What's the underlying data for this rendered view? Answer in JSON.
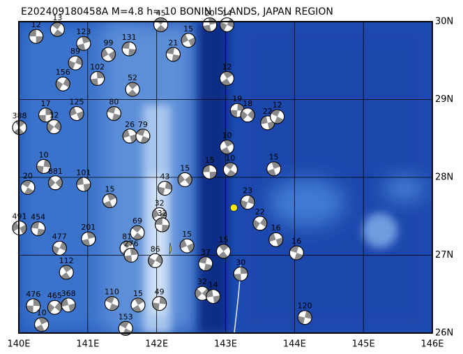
{
  "map": {
    "title": "E202409180458A M=4.8 h= 10 BONIN ISLANDS, JAPAN REGION",
    "lon_range": [
      140,
      146
    ],
    "lat_range": [
      26,
      30
    ],
    "lon_ticks": [
      {
        "value": 140,
        "label": "140E"
      },
      {
        "value": 141,
        "label": "141E"
      },
      {
        "value": 142,
        "label": "142E"
      },
      {
        "value": 143,
        "label": "143E"
      },
      {
        "value": 144,
        "label": "144E"
      },
      {
        "value": 145,
        "label": "145E"
      },
      {
        "value": 146,
        "label": "146E"
      }
    ],
    "lat_ticks": [
      {
        "value": 26,
        "label": "26N"
      },
      {
        "value": 27,
        "label": "27N"
      },
      {
        "value": 28,
        "label": "28N"
      },
      {
        "value": 29,
        "label": "29N"
      },
      {
        "value": 30,
        "label": "30N"
      }
    ],
    "epicenter": {
      "lon": 143.12,
      "lat": 27.61,
      "color": "#ffee00"
    },
    "events": [
      {
        "lon": 140.25,
        "lat": 29.81,
        "label": "12"
      },
      {
        "lon": 140.56,
        "lat": 29.9,
        "label": "13"
      },
      {
        "lon": 140.94,
        "lat": 29.72,
        "label": "123"
      },
      {
        "lon": 140.82,
        "lat": 29.47,
        "label": "89"
      },
      {
        "lon": 141.3,
        "lat": 29.58,
        "label": "99"
      },
      {
        "lon": 141.6,
        "lat": 29.65,
        "label": "131"
      },
      {
        "lon": 142.06,
        "lat": 29.96,
        "label": "45"
      },
      {
        "lon": 142.77,
        "lat": 29.96,
        "label": "20"
      },
      {
        "lon": 143.02,
        "lat": 29.96,
        "label": "14"
      },
      {
        "lon": 142.46,
        "lat": 29.76,
        "label": "15"
      },
      {
        "lon": 142.24,
        "lat": 29.58,
        "label": "21"
      },
      {
        "lon": 141.65,
        "lat": 29.13,
        "label": "52"
      },
      {
        "lon": 141.14,
        "lat": 29.27,
        "label": "102"
      },
      {
        "lon": 140.64,
        "lat": 29.2,
        "label": "156"
      },
      {
        "lon": 140.84,
        "lat": 28.82,
        "label": "125"
      },
      {
        "lon": 141.38,
        "lat": 28.82,
        "label": "80"
      },
      {
        "lon": 140.01,
        "lat": 28.64,
        "label": "388"
      },
      {
        "lon": 140.39,
        "lat": 28.8,
        "label": "17"
      },
      {
        "lon": 140.51,
        "lat": 28.65,
        "label": "12"
      },
      {
        "lon": 141.61,
        "lat": 28.53,
        "label": "26"
      },
      {
        "lon": 141.8,
        "lat": 28.53,
        "label": "79"
      },
      {
        "lon": 143.02,
        "lat": 29.27,
        "label": "12"
      },
      {
        "lon": 143.17,
        "lat": 28.86,
        "label": "19"
      },
      {
        "lon": 143.32,
        "lat": 28.8,
        "label": "18"
      },
      {
        "lon": 143.61,
        "lat": 28.7,
        "label": "22"
      },
      {
        "lon": 143.75,
        "lat": 28.78,
        "label": "12"
      },
      {
        "lon": 143.02,
        "lat": 28.39,
        "label": "10"
      },
      {
        "lon": 140.36,
        "lat": 28.14,
        "label": "10"
      },
      {
        "lon": 140.53,
        "lat": 27.93,
        "label": "881"
      },
      {
        "lon": 140.94,
        "lat": 27.91,
        "label": "101"
      },
      {
        "lon": 140.13,
        "lat": 27.87,
        "label": "20"
      },
      {
        "lon": 141.32,
        "lat": 27.7,
        "label": "15"
      },
      {
        "lon": 142.12,
        "lat": 27.86,
        "label": "43"
      },
      {
        "lon": 142.41,
        "lat": 27.97,
        "label": "15"
      },
      {
        "lon": 142.77,
        "lat": 28.07,
        "label": "15"
      },
      {
        "lon": 143.07,
        "lat": 28.1,
        "label": "10"
      },
      {
        "lon": 143.7,
        "lat": 28.11,
        "label": "15"
      },
      {
        "lon": 143.32,
        "lat": 27.68,
        "label": "23"
      },
      {
        "lon": 142.04,
        "lat": 27.52,
        "label": "32"
      },
      {
        "lon": 142.08,
        "lat": 27.39,
        "label": "32"
      },
      {
        "lon": 141.72,
        "lat": 27.29,
        "label": "69"
      },
      {
        "lon": 141.01,
        "lat": 27.21,
        "label": "201"
      },
      {
        "lon": 140.59,
        "lat": 27.09,
        "label": "477"
      },
      {
        "lon": 140.01,
        "lat": 27.35,
        "label": "491"
      },
      {
        "lon": 140.28,
        "lat": 27.34,
        "label": "454"
      },
      {
        "lon": 141.57,
        "lat": 27.09,
        "label": "81"
      },
      {
        "lon": 141.63,
        "lat": 27.0,
        "label": "276"
      },
      {
        "lon": 141.98,
        "lat": 26.93,
        "label": "86"
      },
      {
        "lon": 142.44,
        "lat": 27.12,
        "label": "15"
      },
      {
        "lon": 142.71,
        "lat": 26.89,
        "label": "37"
      },
      {
        "lon": 142.97,
        "lat": 27.05,
        "label": "15"
      },
      {
        "lon": 143.22,
        "lat": 26.76,
        "label": "30"
      },
      {
        "lon": 143.5,
        "lat": 27.41,
        "label": "22"
      },
      {
        "lon": 143.73,
        "lat": 27.2,
        "label": "16"
      },
      {
        "lon": 144.03,
        "lat": 27.03,
        "label": "16"
      },
      {
        "lon": 140.69,
        "lat": 26.78,
        "label": "112"
      },
      {
        "lon": 140.21,
        "lat": 26.35,
        "label": "476"
      },
      {
        "lon": 140.52,
        "lat": 26.33,
        "label": "465"
      },
      {
        "lon": 140.72,
        "lat": 26.36,
        "label": "368"
      },
      {
        "lon": 141.35,
        "lat": 26.38,
        "label": "110"
      },
      {
        "lon": 141.73,
        "lat": 26.36,
        "label": "15"
      },
      {
        "lon": 142.04,
        "lat": 26.38,
        "label": "49"
      },
      {
        "lon": 142.66,
        "lat": 26.51,
        "label": "32"
      },
      {
        "lon": 142.82,
        "lat": 26.47,
        "label": "14"
      },
      {
        "lon": 141.55,
        "lat": 26.06,
        "label": "153"
      },
      {
        "lon": 140.33,
        "lat": 26.11,
        "label": "10"
      },
      {
        "lon": 144.15,
        "lat": 26.2,
        "label": "120"
      }
    ]
  }
}
